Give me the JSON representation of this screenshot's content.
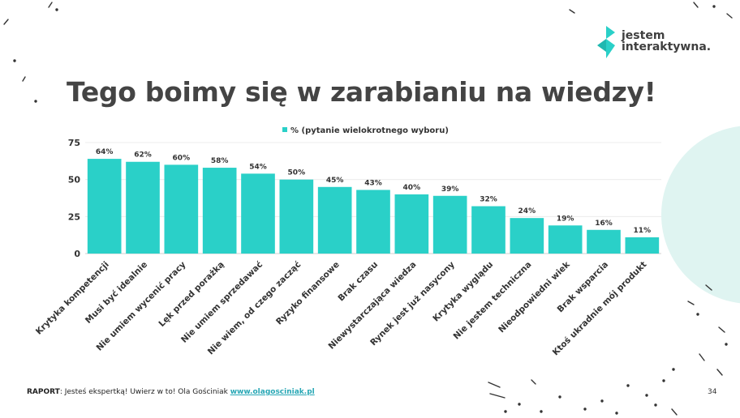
{
  "slide": {
    "title": "Tego boimy się w zarabianiu na wiedzy!",
    "page_number": "34"
  },
  "logo": {
    "line1": "jestem",
    "line2": "interaktywna."
  },
  "footer": {
    "label": "RAPORT",
    "text": ": Jesteś ekspertką! Uwierz w to! Ola Gościniak ",
    "link": "www.olagosciniak.pl"
  },
  "colors": {
    "bar": "#2ad0c8",
    "title": "#444444",
    "accent_circle": "#dff4f1",
    "link": "#27a7b5"
  },
  "chart_data": {
    "type": "bar",
    "legend": "% (pytanie wielokrotnego wyboru)",
    "legend_position": "top",
    "categories": [
      "Krytyka kompetencji",
      "Musi być idealnie",
      "Nie umiem wycenić pracy",
      "Lęk przed porażką",
      "Nie umiem sprzedawać",
      "Nie wiem, od czego zacząć",
      "Ryzyko finansowe",
      "Brak czasu",
      "Niewystarczająca wiedza",
      "Rynek jest już nasycony",
      "Krytyka wyglądu",
      "Nie jestem techniczna",
      "Nieodpowiedni wiek",
      "Brak wsparcia",
      "Ktoś ukradnie mój produkt"
    ],
    "values": [
      64,
      62,
      60,
      58,
      54,
      50,
      45,
      43,
      40,
      39,
      32,
      24,
      19,
      16,
      11
    ],
    "value_labels": [
      "64%",
      "62%",
      "60%",
      "58%",
      "54%",
      "50%",
      "45%",
      "43%",
      "40%",
      "39%",
      "32%",
      "24%",
      "19%",
      "16%",
      "11%"
    ],
    "y_ticks": [
      "0",
      "25",
      "50",
      "75"
    ],
    "y_tick_values": [
      0,
      25,
      50,
      75
    ],
    "ylim": [
      0,
      75
    ],
    "grid": true
  }
}
